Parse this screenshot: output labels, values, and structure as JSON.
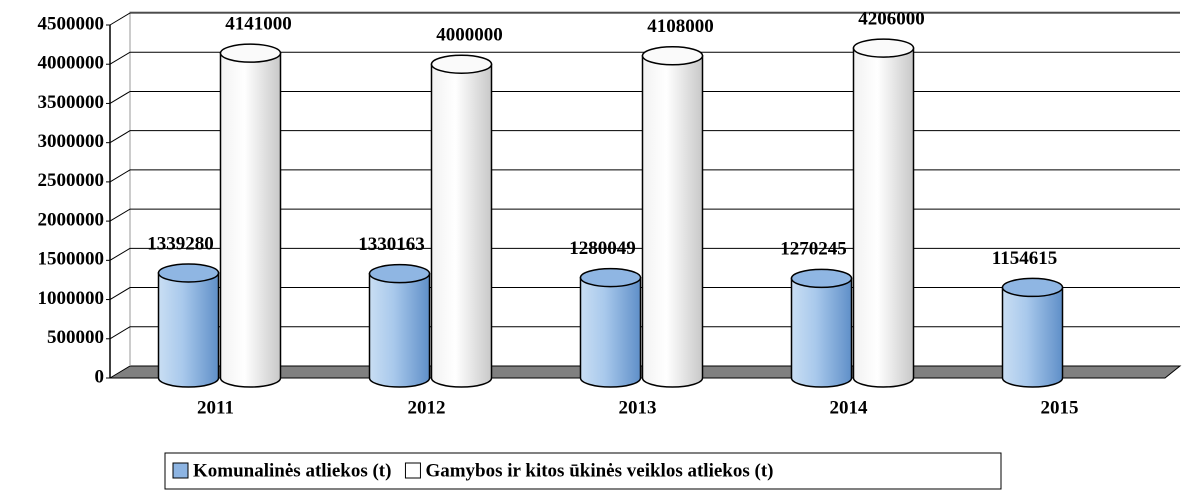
{
  "chart_data": {
    "type": "bar3d",
    "categories": [
      "2011",
      "2012",
      "2013",
      "2014",
      "2015"
    ],
    "series": [
      {
        "name": "Komunalinės atliekos (t)",
        "color": "#8db4e2",
        "values": [
          1339280,
          1330163,
          1280049,
          1270245,
          1154615
        ]
      },
      {
        "name": "Gamybos ir kitos ūkinės veiklos atliekos (t)",
        "color": "#ffffff",
        "values": [
          4141000,
          4000000,
          4108000,
          4206000,
          null
        ]
      }
    ],
    "ylim": [
      0,
      4500000
    ],
    "yticks": [
      0,
      500000,
      1000000,
      1500000,
      2000000,
      2500000,
      3000000,
      3500000,
      4000000,
      4500000
    ],
    "grid": true,
    "legend": "bottom"
  }
}
